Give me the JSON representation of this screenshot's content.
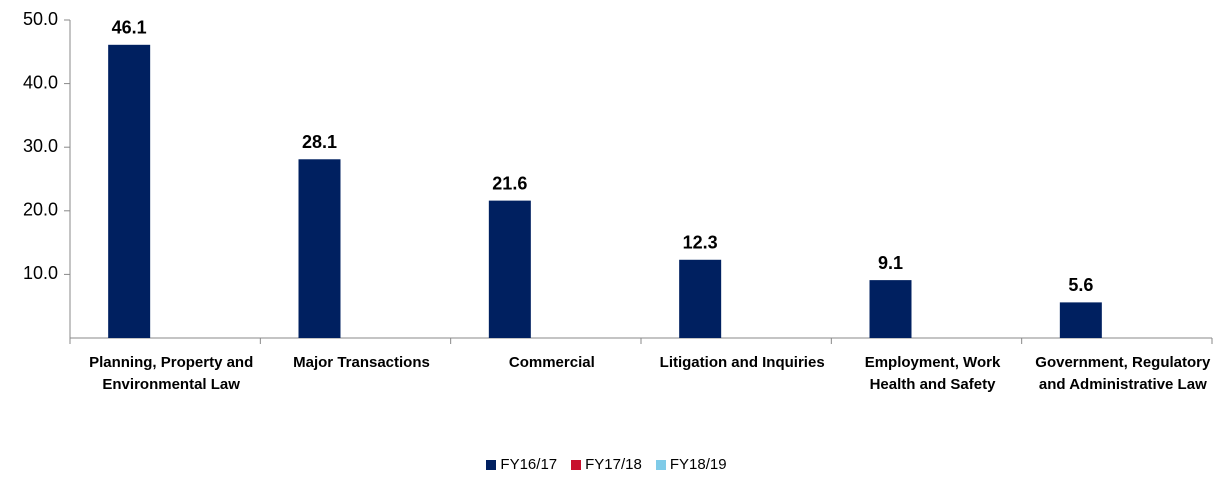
{
  "chart_data": {
    "type": "bar",
    "categories": [
      "Planning, Property and Environmental Law",
      "Major Transactions",
      "Commercial",
      "Litigation and Inquiries",
      "Employment, Work Health and Safety",
      "Government, Regulatory and Administrative Law"
    ],
    "series": [
      {
        "name": "FY16/17",
        "color": "#002060",
        "values": [
          46.1,
          28.1,
          21.6,
          12.3,
          9.1,
          5.6
        ]
      },
      {
        "name": "FY17/18",
        "color": "#c8102e",
        "values": [
          null,
          null,
          null,
          null,
          null,
          null
        ]
      },
      {
        "name": "FY18/19",
        "color": "#7fcbe8",
        "values": [
          null,
          null,
          null,
          null,
          null,
          null
        ]
      }
    ],
    "ylim": [
      0,
      50
    ],
    "yticks": [
      {
        "value": 10,
        "label": "10.0"
      },
      {
        "value": 20,
        "label": "20.0"
      },
      {
        "value": 30,
        "label": "30.0"
      },
      {
        "value": 40,
        "label": "40.0"
      },
      {
        "value": 50,
        "label": "50.0"
      }
    ],
    "grid": false,
    "legend": "bottom"
  }
}
